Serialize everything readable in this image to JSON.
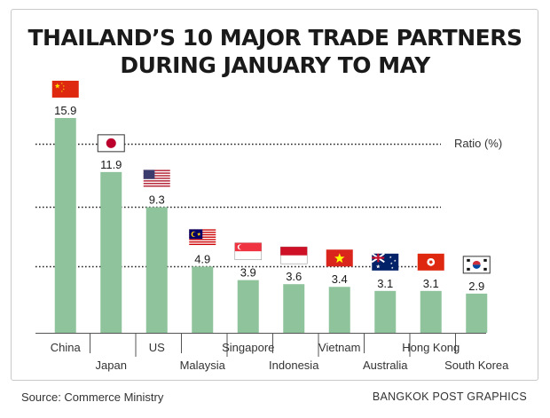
{
  "chart_data": {
    "type": "bar",
    "title": "THAILAND’S 10 MAJOR TRADE PARTNERS",
    "subtitle": "DURING JANUARY TO MAY",
    "ylabel": "Ratio (%)",
    "categories": [
      "China",
      "Japan",
      "US",
      "Malaysia",
      "Singapore",
      "Indonesia",
      "Vietnam",
      "Australia",
      "Hong Kong",
      "South Korea"
    ],
    "values": [
      15.9,
      11.9,
      9.3,
      4.9,
      3.9,
      3.6,
      3.4,
      3.1,
      3.1,
      2.9
    ],
    "value_labels": [
      "15.9",
      "11.9",
      "9.3",
      "4.9",
      "3.9",
      "3.6",
      "3.4",
      "3.1",
      "3.1",
      "2.9"
    ],
    "ylim": [
      0,
      18
    ],
    "gridlines": [
      4.9,
      9.3,
      14.0
    ],
    "grid": true,
    "legend": "none",
    "flags": [
      "china-flag-icon",
      "japan-flag-icon",
      "us-flag-icon",
      "malaysia-flag-icon",
      "singapore-flag-icon",
      "indonesia-flag-icon",
      "vietnam-flag-icon",
      "australia-flag-icon",
      "hong-kong-flag-icon",
      "south-korea-flag-icon"
    ],
    "colors": {
      "bar": "#8fc39c",
      "grid": "#222222",
      "text": "#1a1a1a"
    }
  },
  "footer": {
    "source": "Source: Commerce Ministry",
    "credit": "BANGKOK POST GRAPHICS"
  }
}
